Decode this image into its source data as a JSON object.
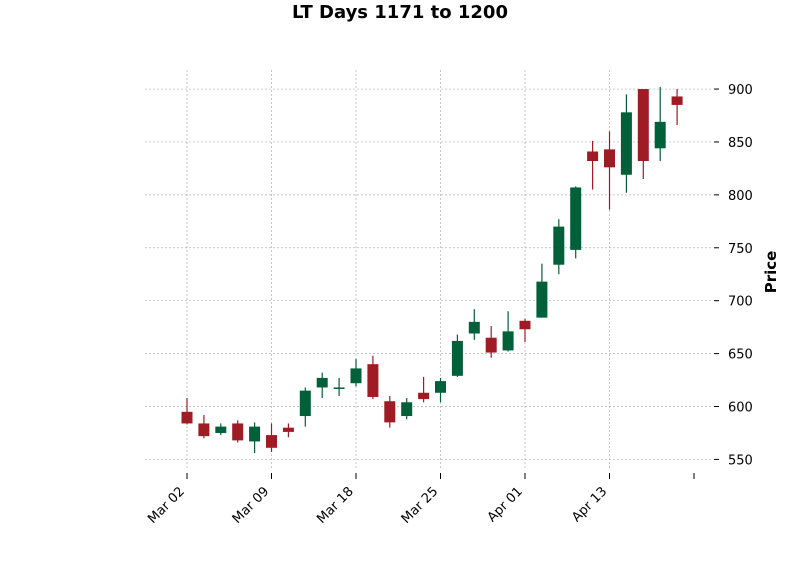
{
  "chart_data": {
    "type": "candlestick",
    "title": "LT Days 1171 to 1200",
    "xlabel": "",
    "ylabel": "Price",
    "ylim": [
      540,
      918
    ],
    "yticks": [
      550,
      600,
      650,
      700,
      750,
      800,
      850,
      900
    ],
    "xtick_labels": [
      "Mar 02",
      "Mar 09",
      "Mar 18",
      "Mar 25",
      "Apr 01",
      "Apr 13",
      ""
    ],
    "xtick_index": [
      0,
      5,
      10,
      15,
      20,
      25,
      30
    ],
    "grid": true,
    "colors": {
      "up": "#00603a",
      "down": "#a01c24"
    },
    "candles": [
      {
        "o": 595,
        "h": 608,
        "l": 583,
        "c": 584
      },
      {
        "o": 584,
        "h": 592,
        "l": 570,
        "c": 572
      },
      {
        "o": 575,
        "h": 584,
        "l": 573,
        "c": 581
      },
      {
        "o": 584,
        "h": 587,
        "l": 566,
        "c": 568
      },
      {
        "o": 567,
        "h": 585,
        "l": 556,
        "c": 581
      },
      {
        "o": 573,
        "h": 584,
        "l": 557,
        "c": 561
      },
      {
        "o": 580,
        "h": 584,
        "l": 571,
        "c": 576
      },
      {
        "o": 591,
        "h": 618,
        "l": 581,
        "c": 615
      },
      {
        "o": 618,
        "h": 632,
        "l": 608,
        "c": 627
      },
      {
        "o": 617,
        "h": 627,
        "l": 610,
        "c": 618
      },
      {
        "o": 622,
        "h": 645,
        "l": 619,
        "c": 636
      },
      {
        "o": 640,
        "h": 648,
        "l": 607,
        "c": 609
      },
      {
        "o": 605,
        "h": 610,
        "l": 580,
        "c": 585
      },
      {
        "o": 591,
        "h": 608,
        "l": 588,
        "c": 604
      },
      {
        "o": 613,
        "h": 628,
        "l": 604,
        "c": 607
      },
      {
        "o": 613,
        "h": 627,
        "l": 604,
        "c": 624
      },
      {
        "o": 629,
        "h": 668,
        "l": 628,
        "c": 662
      },
      {
        "o": 669,
        "h": 692,
        "l": 663,
        "c": 680
      },
      {
        "o": 665,
        "h": 676,
        "l": 646,
        "c": 651
      },
      {
        "o": 653,
        "h": 690,
        "l": 652,
        "c": 671
      },
      {
        "o": 681,
        "h": 683,
        "l": 661,
        "c": 673
      },
      {
        "o": 684,
        "h": 735,
        "l": 684,
        "c": 718
      },
      {
        "o": 734,
        "h": 777,
        "l": 725,
        "c": 770
      },
      {
        "o": 748,
        "h": 808,
        "l": 740,
        "c": 807
      },
      {
        "o": 841,
        "h": 851,
        "l": 805,
        "c": 832
      },
      {
        "o": 843,
        "h": 860,
        "l": 786,
        "c": 826
      },
      {
        "o": 819,
        "h": 895,
        "l": 802,
        "c": 878
      },
      {
        "o": 900,
        "h": 900,
        "l": 815,
        "c": 832
      },
      {
        "o": 844,
        "h": 902,
        "l": 832,
        "c": 869
      },
      {
        "o": 893,
        "h": 900,
        "l": 866,
        "c": 885
      }
    ]
  }
}
